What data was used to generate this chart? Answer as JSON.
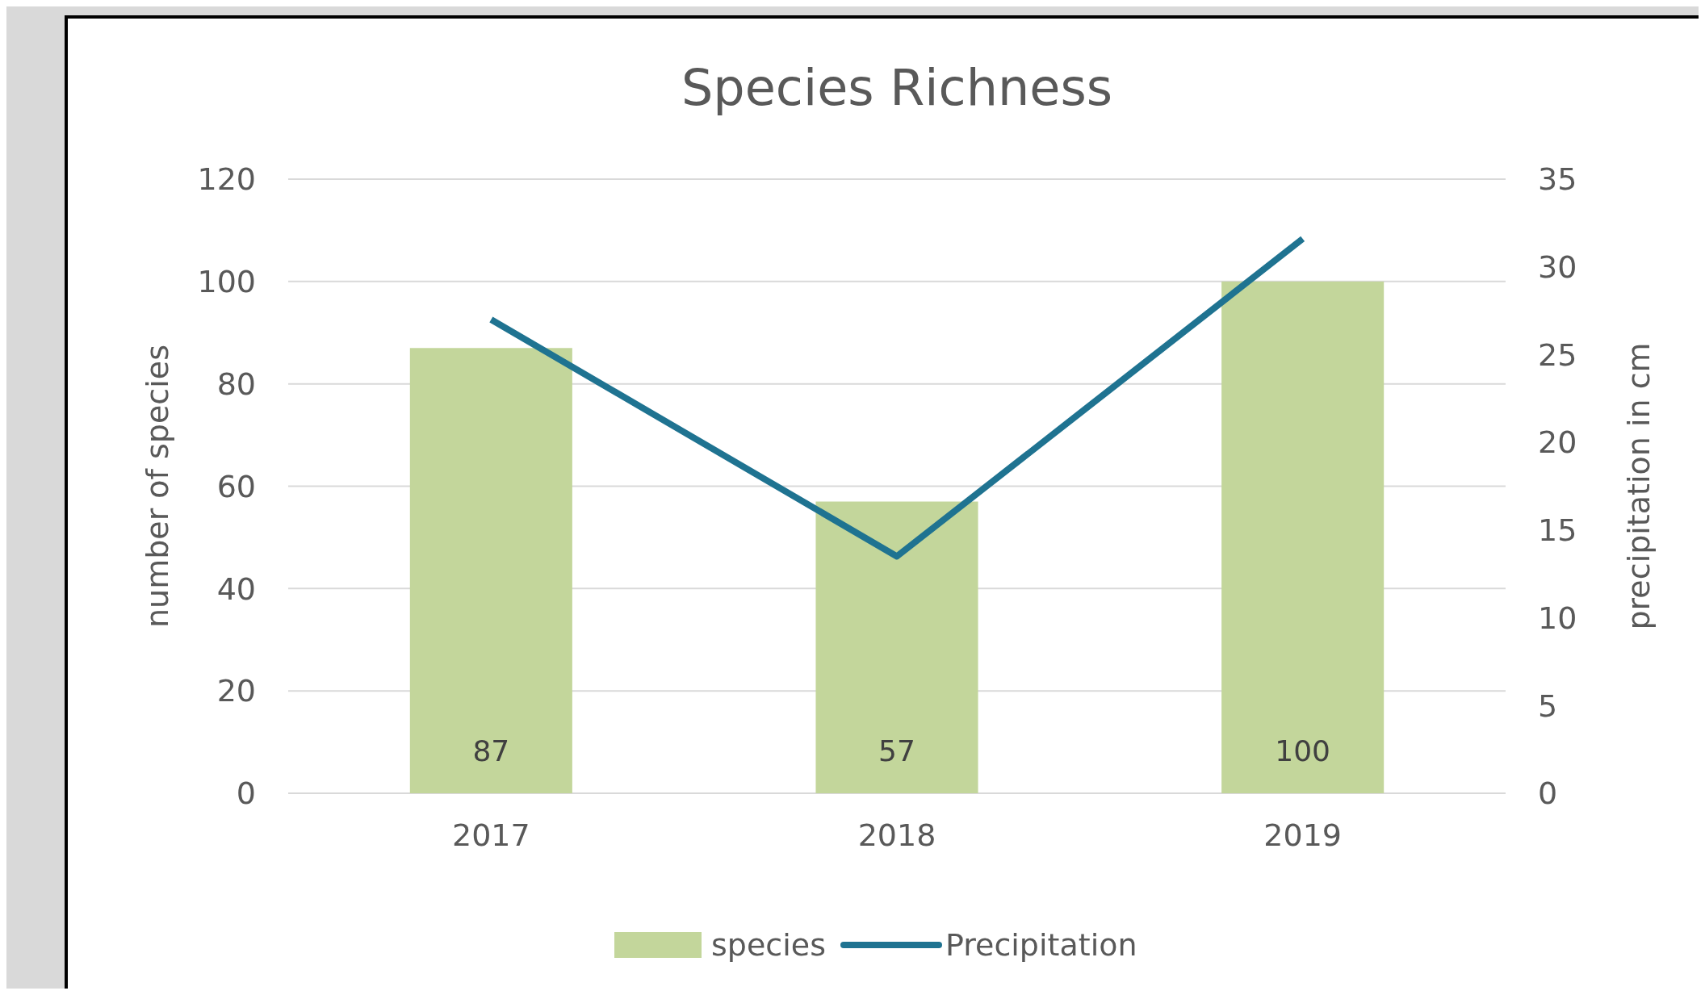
{
  "chart_data": {
    "type": "bar",
    "title": "Species Richness",
    "categories": [
      "2017",
      "2018",
      "2019"
    ],
    "ylabel": "number of species",
    "y2label": "precipitation in cm",
    "series": [
      {
        "name": "species",
        "color": "#c3d69b",
        "values": [
          87,
          57,
          100
        ],
        "value_labels": [
          "87",
          "57",
          "100"
        ]
      },
      {
        "name": "Precipitation",
        "type": "line",
        "axis": "y2",
        "color": "#1f7391",
        "values": [
          27,
          13.5,
          31.6
        ]
      }
    ],
    "ylim": [
      0,
      120
    ],
    "yticks": [
      0,
      20,
      40,
      60,
      80,
      100,
      120
    ],
    "y2lim": [
      0,
      35
    ],
    "y2ticks": [
      0,
      5,
      10,
      15,
      20,
      25,
      30,
      35
    ],
    "grid": "y",
    "legend": "bottom",
    "marker": "none"
  }
}
